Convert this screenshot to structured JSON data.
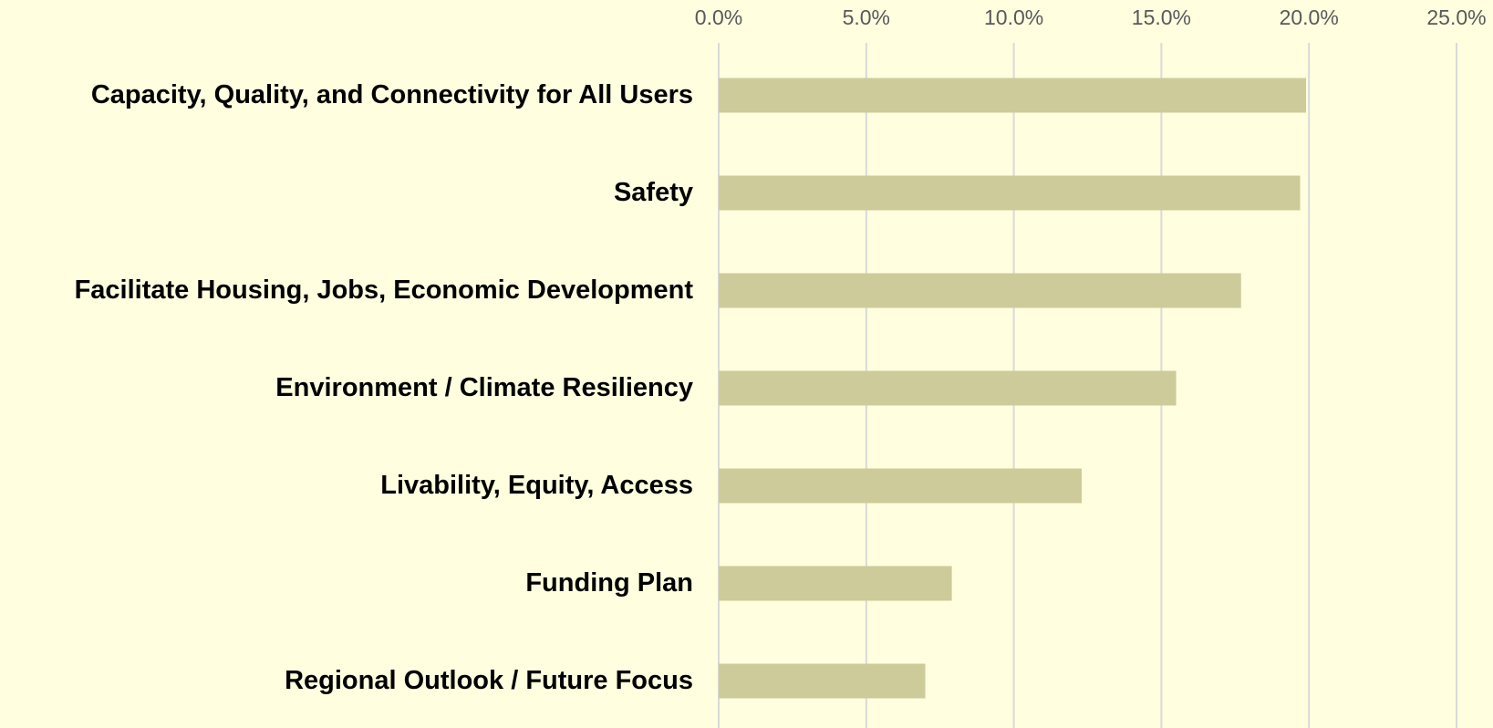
{
  "chart_data": {
    "type": "bar",
    "orientation": "horizontal",
    "categories": [
      "Capacity, Quality, and Connectivity for All Users",
      "Safety ",
      "Facilitate Housing, Jobs, Economic Development",
      "Environment / Climate Resiliency",
      "Livability, Equity, Access",
      "Funding Plan",
      "Regional Outlook / Future Focus"
    ],
    "values": [
      19.9,
      19.7,
      17.7,
      15.5,
      12.3,
      7.9,
      7.0
    ],
    "color": "#cdcb9a",
    "xlim": [
      0,
      25
    ],
    "xticks": [
      {
        "value": 0,
        "label": "0.0%"
      },
      {
        "value": 5,
        "label": "5.0%"
      },
      {
        "value": 10,
        "label": "10.0%"
      },
      {
        "value": 15,
        "label": "15.0%"
      },
      {
        "value": 20,
        "label": "20.0%"
      },
      {
        "value": 25,
        "label": "25.0%"
      }
    ],
    "grid": true
  }
}
